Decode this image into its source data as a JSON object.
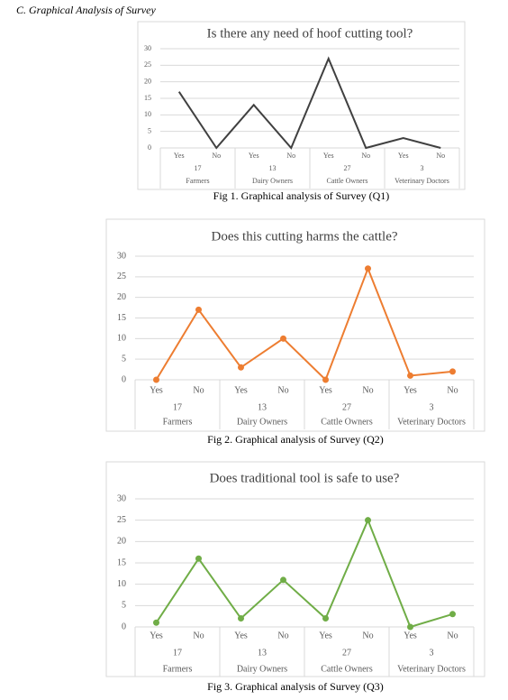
{
  "heading": "C. Graphical Analysis of Survey",
  "chart_data": [
    {
      "type": "line",
      "title": "Is there any need of hoof cutting tool?",
      "caption": "Fig 1. Graphical analysis of Survey (Q1)",
      "categories": [
        "Yes",
        "No",
        "Yes",
        "No",
        "Yes",
        "No",
        "Yes",
        "No"
      ],
      "groups": [
        {
          "count": 17,
          "name": "Farmers"
        },
        {
          "count": 13,
          "name": "Dairy Owners"
        },
        {
          "count": 27,
          "name": "Cattle Owners"
        },
        {
          "count": 3,
          "name": "Veterinary Doctors"
        }
      ],
      "values": [
        17,
        0,
        13,
        0,
        27,
        0,
        3,
        0
      ],
      "color": "#404040",
      "markers": false,
      "ylim": [
        0,
        30
      ],
      "yticks": [
        0,
        5,
        10,
        15,
        20,
        25,
        30
      ],
      "grid": true
    },
    {
      "type": "line",
      "title": "Does this cutting harms the cattle?",
      "caption": "Fig 2. Graphical analysis of Survey (Q2)",
      "categories": [
        "Yes",
        "No",
        "Yes",
        "No",
        "Yes",
        "No",
        "Yes",
        "No"
      ],
      "groups": [
        {
          "count": 17,
          "name": "Farmers"
        },
        {
          "count": 13,
          "name": "Dairy Owners"
        },
        {
          "count": 27,
          "name": "Cattle Owners"
        },
        {
          "count": 3,
          "name": "Veterinary Doctors"
        }
      ],
      "values": [
        0,
        17,
        3,
        10,
        0,
        27,
        1,
        2
      ],
      "color": "#ed7d31",
      "markers": true,
      "ylim": [
        0,
        30
      ],
      "yticks": [
        0,
        5,
        10,
        15,
        20,
        25,
        30
      ],
      "grid": true
    },
    {
      "type": "line",
      "title": "Does traditional tool is safe to use?",
      "caption": "Fig 3. Graphical analysis of Survey (Q3)",
      "categories": [
        "Yes",
        "No",
        "Yes",
        "No",
        "Yes",
        "No",
        "Yes",
        "No"
      ],
      "groups": [
        {
          "count": 17,
          "name": "Farmers"
        },
        {
          "count": 13,
          "name": "Dairy Owners"
        },
        {
          "count": 27,
          "name": "Cattle Owners"
        },
        {
          "count": 3,
          "name": "Veterinary Doctors"
        }
      ],
      "values": [
        1,
        16,
        2,
        11,
        2,
        25,
        0,
        3
      ],
      "color": "#70ad47",
      "markers": true,
      "ylim": [
        0,
        30
      ],
      "yticks": [
        0,
        5,
        10,
        15,
        20,
        25,
        30
      ],
      "grid": true
    }
  ]
}
